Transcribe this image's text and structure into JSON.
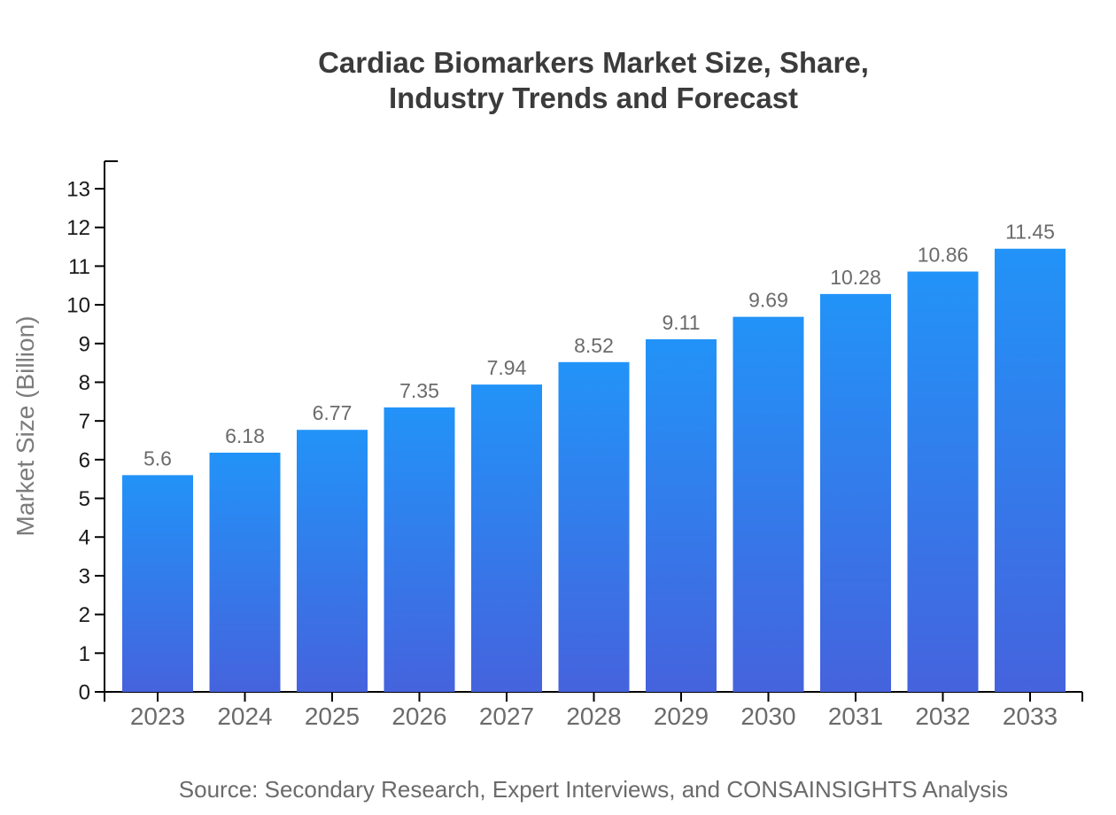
{
  "header": {
    "title_lines": [
      "Cardiac Biomarkers Market Size, Share,",
      "Industry Trends and Forecast"
    ]
  },
  "footer": {
    "source": "Source: Secondary Research, Expert Interviews, and CONSAINSIGHTS Analysis"
  },
  "chart_data": {
    "type": "bar",
    "title": "Cardiac Biomarkers Market Size, Share, Industry Trends and Forecast",
    "categories": [
      "2023",
      "2024",
      "2025",
      "2026",
      "2027",
      "2028",
      "2029",
      "2030",
      "2031",
      "2032",
      "2033"
    ],
    "values": [
      5.6,
      6.18,
      6.77,
      7.35,
      7.94,
      8.52,
      9.11,
      9.69,
      10.28,
      10.86,
      11.45
    ],
    "value_labels": [
      "5.6",
      "6.18",
      "6.77",
      "7.35",
      "7.94",
      "8.52",
      "9.11",
      "9.69",
      "10.28",
      "10.86",
      "11.45"
    ],
    "xlabel": "",
    "ylabel": "Market Size (Billion)",
    "ylim": [
      0,
      13
    ],
    "ytick_labels": [
      "0",
      "1",
      "2",
      "3",
      "4",
      "5",
      "6",
      "7",
      "8",
      "9",
      "10",
      "11",
      "12",
      "13"
    ],
    "grid": false,
    "legend": null,
    "colors": {
      "bar_gradient_top": "#2293F8",
      "bar_gradient_bottom": "#4563DD",
      "axis": "#000000",
      "ytick_label": "#1a1a1a",
      "category_label": "#6b6b6b",
      "value_label": "#6b6b6b",
      "axis_title": "#7c7c7c",
      "title": "#3b3b3b",
      "source": "#6b6b6b",
      "background": "#ffffff"
    }
  }
}
